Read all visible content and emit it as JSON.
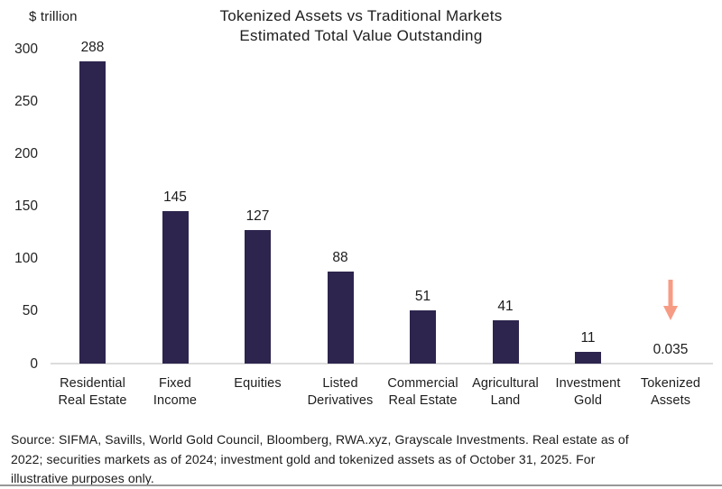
{
  "chart_data": {
    "type": "bar",
    "title": "Tokenized Assets vs Traditional Markets",
    "subtitle": "Estimated Total Value Outstanding",
    "ylabel": "$ trillion",
    "xlabel": "",
    "ylim": [
      0,
      300
    ],
    "yticks": [
      0,
      50,
      100,
      150,
      200,
      250,
      300
    ],
    "grid": false,
    "legend": null,
    "categories": [
      "Residential Real Estate",
      "Fixed Income",
      "Equities",
      "Listed Derivatives",
      "Commercial Real Estate",
      "Agricultural Land",
      "Investment Gold",
      "Tokenized Assets"
    ],
    "categories_display": [
      [
        "Residential",
        "Real Estate"
      ],
      [
        "Fixed",
        "Income"
      ],
      [
        "Equities"
      ],
      [
        "Listed",
        "Derivatives"
      ],
      [
        "Commercial",
        "Real Estate"
      ],
      [
        "Agricultural",
        "Land"
      ],
      [
        "Investment",
        "Gold"
      ],
      [
        "Tokenized",
        "Assets"
      ]
    ],
    "values": [
      288,
      145,
      127,
      88,
      51,
      41,
      11,
      0.035
    ],
    "value_labels": [
      "288",
      "145",
      "127",
      "88",
      "51",
      "41",
      "11",
      "0.035"
    ],
    "bar_color": "#2D254E",
    "axis_line_color": "#DCDCDC",
    "background_color": "#FFFFFF",
    "arrow": {
      "target_category": "Tokenized Assets",
      "category_index": 7,
      "direction": "down",
      "color": "#F79C84"
    }
  },
  "footer": {
    "divider_color": "#989898",
    "lines": [
      "Source: SIFMA, Savills, World Gold Council, Bloomberg, RWA.xyz, Grayscale Investments. Real estate as of",
      "2022; securities markets as of 2024; investment gold and tokenized assets as of October 31, 2025. For",
      "illustrative purposes only."
    ]
  }
}
